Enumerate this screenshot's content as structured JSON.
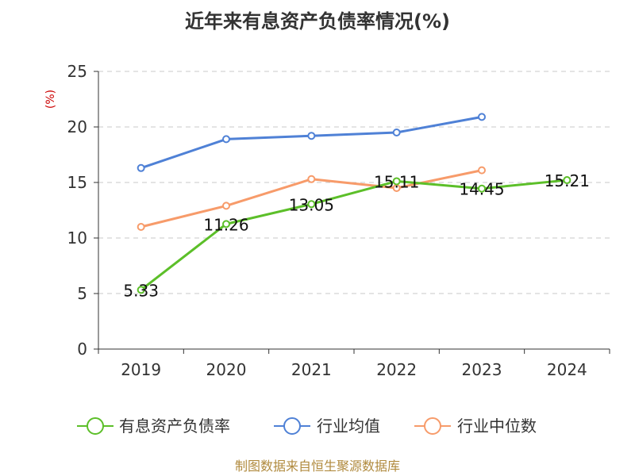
{
  "chart_data": {
    "type": "line",
    "title": "近年来有息资产负债率情况(%)",
    "ylabel": "(%)",
    "xlabel": "",
    "categories": [
      "2019",
      "2020",
      "2021",
      "2022",
      "2023",
      "2024"
    ],
    "ylim": [
      0,
      25
    ],
    "yticks": [
      0,
      5,
      10,
      15,
      20,
      25
    ],
    "grid": "horizontal dashed",
    "legend_position": "bottom",
    "series": [
      {
        "name": "有息资产负债率",
        "color": "#5cbf29",
        "values": [
          5.33,
          11.26,
          13.05,
          15.11,
          14.45,
          15.21
        ],
        "labels": [
          "5.33",
          "11.26",
          "13.05",
          "15.11",
          "14.45",
          "15.21"
        ]
      },
      {
        "name": "行业均值",
        "color": "#4f81d6",
        "values": [
          16.3,
          18.9,
          19.2,
          19.5,
          20.9,
          null
        ]
      },
      {
        "name": "行业中位数",
        "color": "#f79b6a",
        "values": [
          11.0,
          12.9,
          15.3,
          14.5,
          16.1,
          null
        ]
      }
    ]
  },
  "footer": {
    "source": "制图数据来自恒生聚源数据库"
  }
}
